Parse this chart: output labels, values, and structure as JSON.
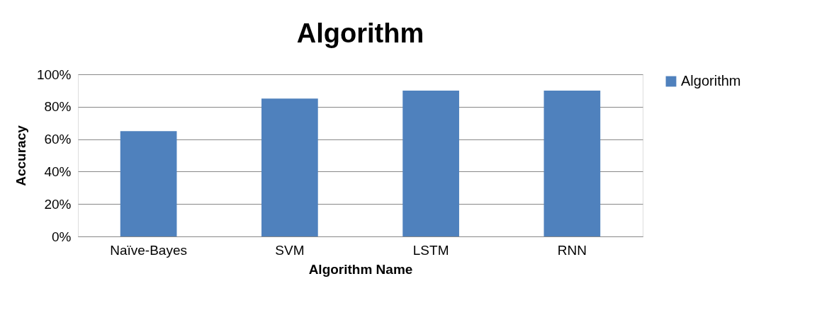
{
  "chart_data": {
    "type": "bar",
    "title": "Algorithm",
    "xlabel": "Algorithm Name",
    "ylabel": "Accuracy",
    "categories": [
      "Naïve-Bayes",
      "SVM",
      "LSTM",
      "RNN"
    ],
    "series": [
      {
        "name": "Algorithm",
        "color": "#4f81bd",
        "values": [
          65,
          85,
          90,
          90
        ]
      }
    ],
    "ylim": [
      0,
      100
    ],
    "yticks": [
      {
        "value": 0,
        "label": "0%"
      },
      {
        "value": 20,
        "label": "20%"
      },
      {
        "value": 40,
        "label": "40%"
      },
      {
        "value": 60,
        "label": "60%"
      },
      {
        "value": 80,
        "label": "80%"
      },
      {
        "value": 100,
        "label": "100%"
      }
    ],
    "grid": "y",
    "legend": "right"
  }
}
